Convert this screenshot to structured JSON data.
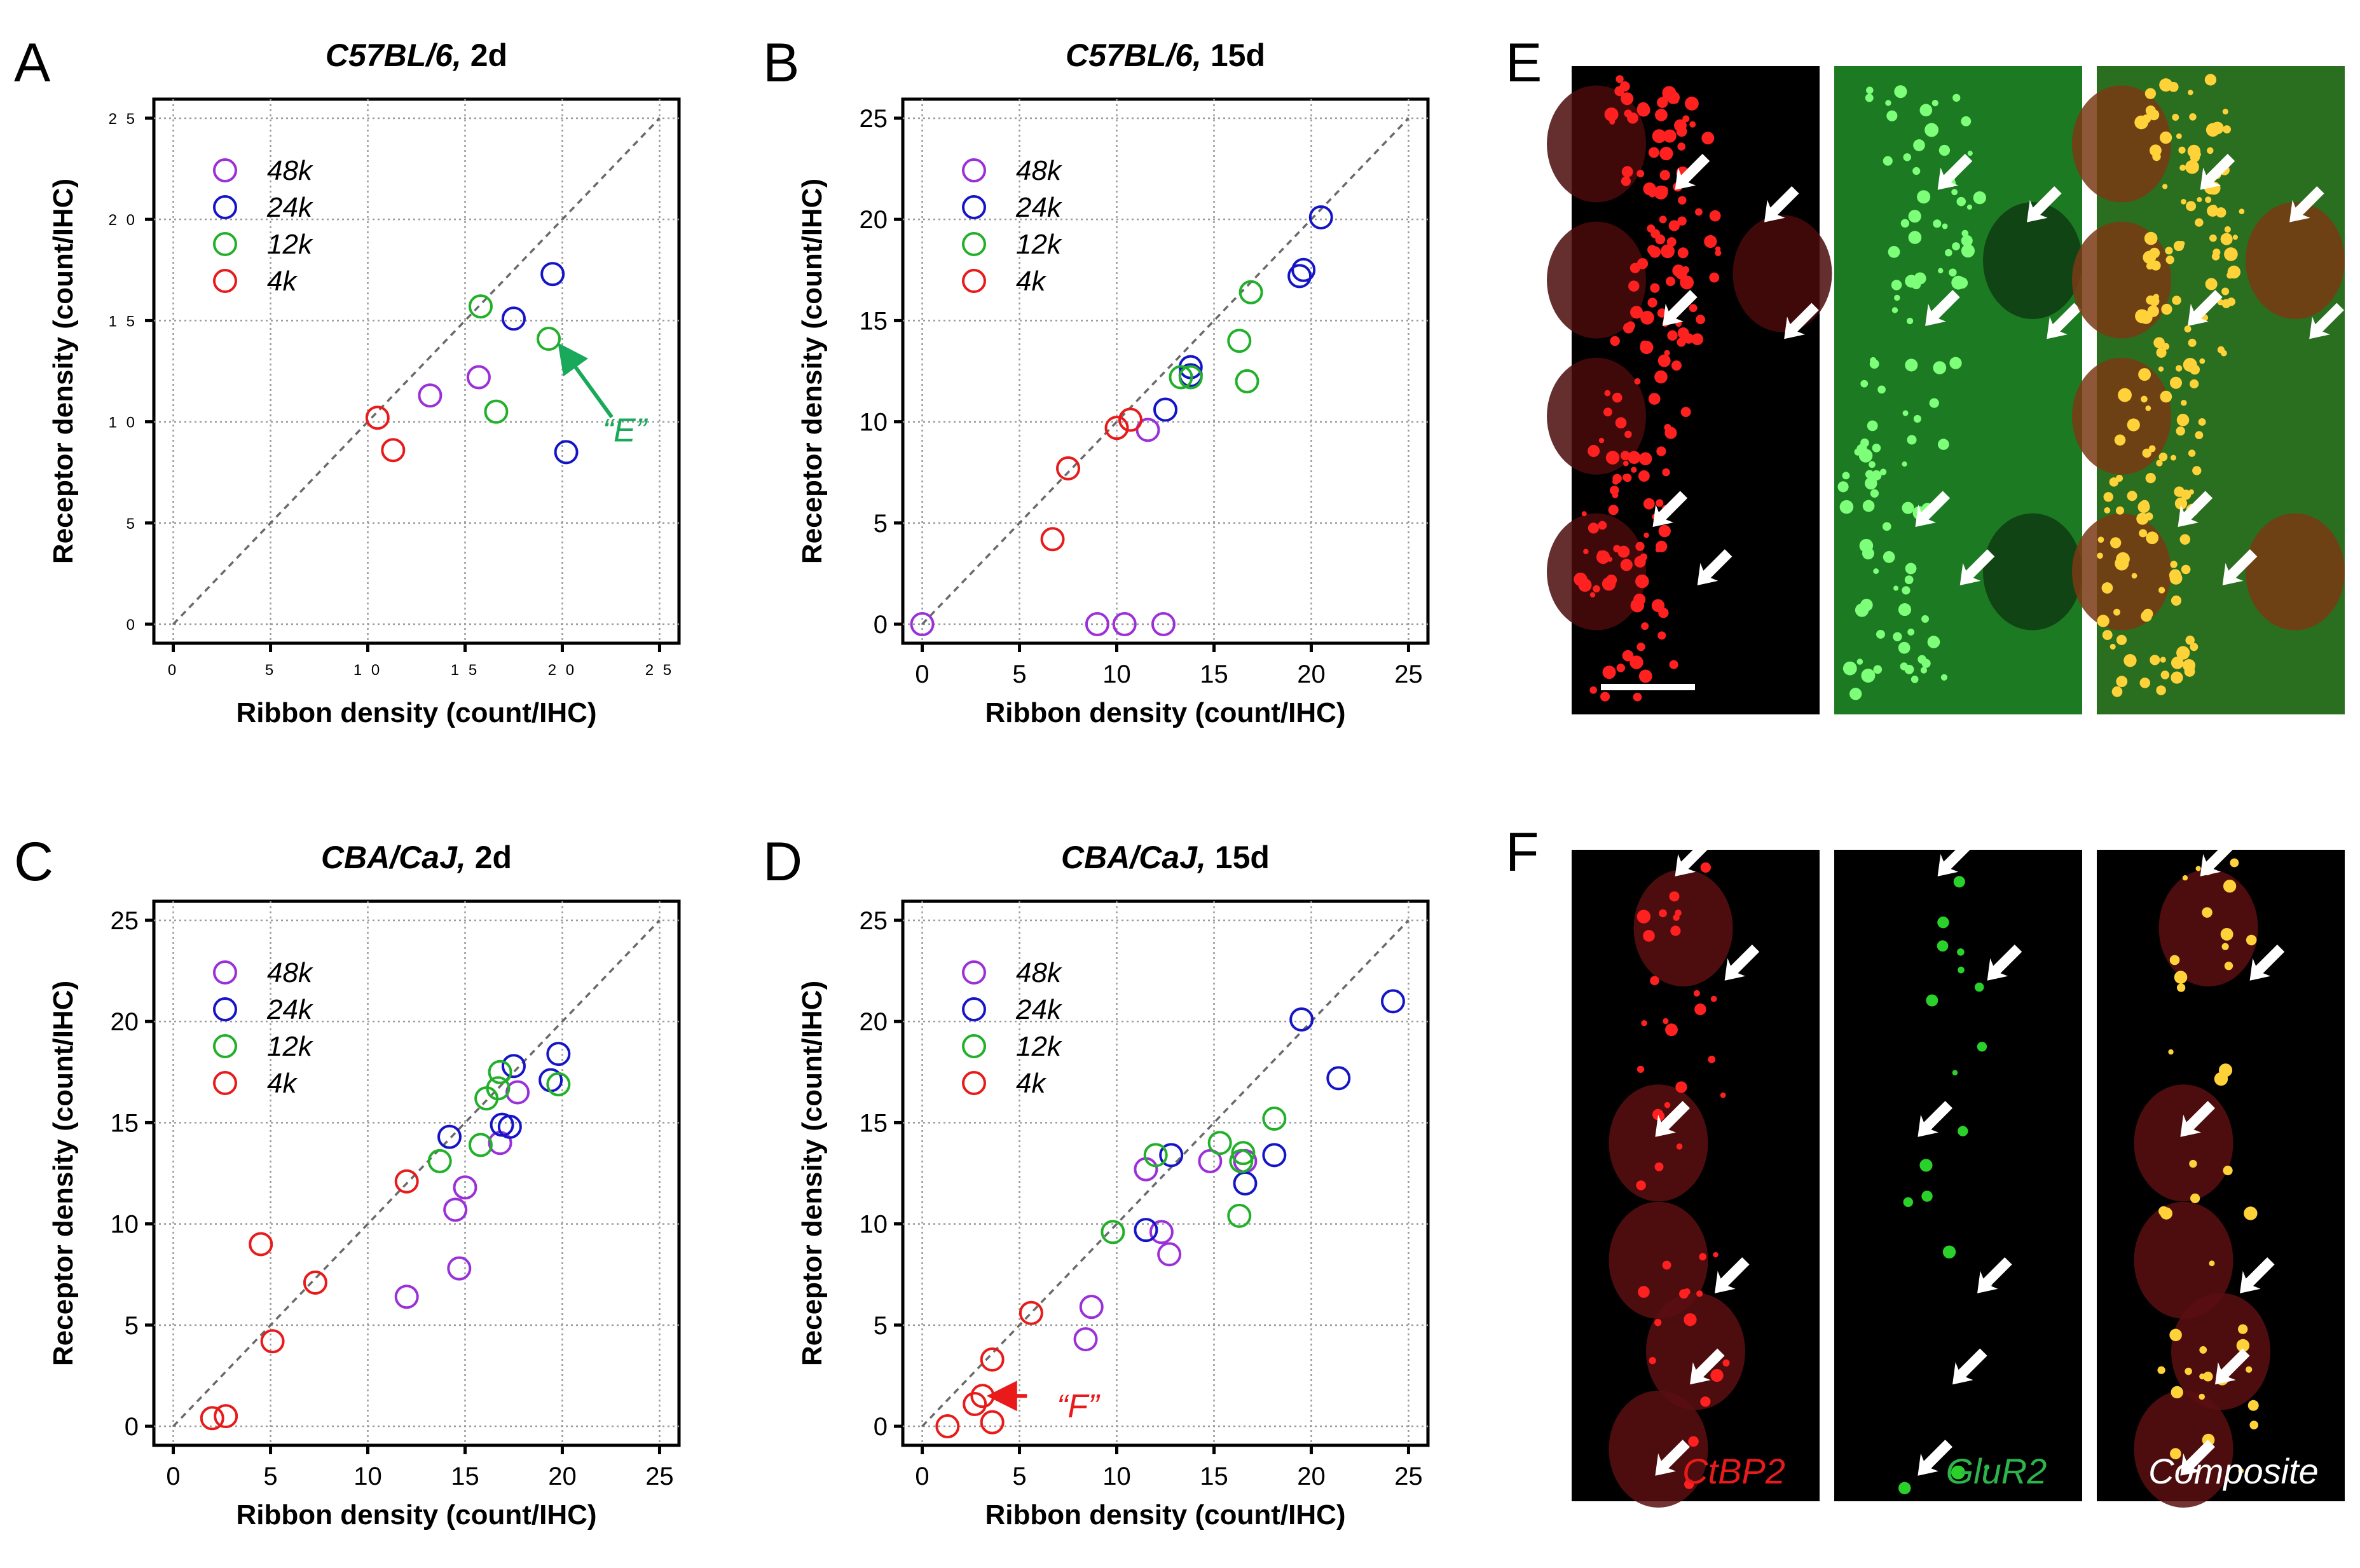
{
  "colors": {
    "48k": "#9b30d9",
    "24k": "#1515c8",
    "12k": "#22b02a",
    "4k": "#e81a1a",
    "annotation_E": "#1aa85a",
    "annotation_F": "#e81a1a",
    "label_ctbp2": "#e81a1a",
    "label_glur2": "#2bb54a",
    "label_composite": "#ffffff"
  },
  "legend_entries": [
    "48k",
    "24k",
    "12k",
    "4k"
  ],
  "chart_data": [
    {
      "panel": "A",
      "type": "scatter",
      "title_italic": "C57BL/6,",
      "title_rest": " 2d",
      "xlabel": "Ribbon density (count/IHC)",
      "ylabel": "Receptor density (count/IHC)",
      "xlim": [
        0,
        25
      ],
      "ylim": [
        0,
        25
      ],
      "xticks": [
        "0",
        "5",
        "1 0",
        "1 5",
        "2 0",
        "2 5"
      ],
      "yticks": [
        "0",
        "5",
        "1 0",
        "1 5",
        "2 0",
        "2 5"
      ],
      "tick_style": "small",
      "grid": true,
      "identity_line": true,
      "legend_position": "top-left",
      "series": [
        {
          "name": "48k",
          "points": [
            [
              13.2,
              11.3
            ],
            [
              15.7,
              12.2
            ]
          ]
        },
        {
          "name": "24k",
          "points": [
            [
              17.5,
              15.1
            ],
            [
              19.5,
              17.3
            ],
            [
              20.2,
              8.5
            ]
          ]
        },
        {
          "name": "12k",
          "points": [
            [
              15.8,
              15.7
            ],
            [
              16.6,
              10.5
            ],
            [
              19.3,
              14.1
            ]
          ]
        },
        {
          "name": "4k",
          "points": [
            [
              10.5,
              10.2
            ],
            [
              11.3,
              8.6
            ]
          ]
        }
      ],
      "annotation": {
        "text": "“E”",
        "color_key": "annotation_E",
        "arrow_to": [
          20.0,
          13.6
        ],
        "text_at": [
          23.2,
          9.6
        ]
      }
    },
    {
      "panel": "B",
      "type": "scatter",
      "title_italic": "C57BL/6,",
      "title_rest": " 15d",
      "xlabel": "Ribbon density (count/IHC)",
      "ylabel": "Receptor density (count/IHC)",
      "xlim": [
        0,
        25
      ],
      "ylim": [
        0,
        25
      ],
      "xticks": [
        "0",
        "5",
        "10",
        "15",
        "20",
        "25"
      ],
      "yticks": [
        "0",
        "5",
        "10",
        "15",
        "20",
        "25"
      ],
      "tick_style": "normal",
      "grid": true,
      "identity_line": true,
      "legend_position": "top-left",
      "series": [
        {
          "name": "48k",
          "points": [
            [
              0.0,
              0.0
            ],
            [
              9.0,
              0.0
            ],
            [
              10.4,
              0.0
            ],
            [
              12.4,
              0.0
            ],
            [
              11.6,
              9.6
            ]
          ]
        },
        {
          "name": "24k",
          "points": [
            [
              12.5,
              10.6
            ],
            [
              13.8,
              12.3
            ],
            [
              13.8,
              12.7
            ],
            [
              19.4,
              17.2
            ],
            [
              19.6,
              17.5
            ],
            [
              20.5,
              20.1
            ]
          ]
        },
        {
          "name": "12k",
          "points": [
            [
              13.3,
              12.2
            ],
            [
              13.8,
              12.2
            ],
            [
              16.3,
              14.0
            ],
            [
              16.7,
              12.0
            ],
            [
              16.9,
              16.4
            ]
          ]
        },
        {
          "name": "4k",
          "points": [
            [
              6.7,
              4.2
            ],
            [
              7.5,
              7.7
            ],
            [
              10.0,
              9.7
            ],
            [
              10.7,
              10.1
            ]
          ]
        }
      ]
    },
    {
      "panel": "C",
      "type": "scatter",
      "title_italic": "CBA/CaJ,",
      "title_rest": " 2d",
      "xlabel": "Ribbon density (count/IHC)",
      "ylabel": "Receptor density (count/IHC)",
      "xlim": [
        0,
        25
      ],
      "ylim": [
        0,
        25
      ],
      "xticks": [
        "0",
        "5",
        "10",
        "15",
        "20",
        "25"
      ],
      "yticks": [
        "0",
        "5",
        "10",
        "15",
        "20",
        "25"
      ],
      "tick_style": "normal",
      "grid": true,
      "identity_line": true,
      "legend_position": "top-left",
      "series": [
        {
          "name": "48k",
          "points": [
            [
              12.0,
              6.4
            ],
            [
              14.5,
              10.7
            ],
            [
              14.7,
              7.8
            ],
            [
              15.0,
              11.8
            ],
            [
              16.8,
              14.0
            ],
            [
              17.7,
              16.5
            ]
          ]
        },
        {
          "name": "24k",
          "points": [
            [
              14.2,
              14.3
            ],
            [
              16.9,
              14.9
            ],
            [
              17.3,
              14.8
            ],
            [
              17.5,
              17.8
            ],
            [
              19.4,
              17.1
            ],
            [
              19.8,
              18.4
            ]
          ]
        },
        {
          "name": "12k",
          "points": [
            [
              13.7,
              13.1
            ],
            [
              15.8,
              13.9
            ],
            [
              16.1,
              16.2
            ],
            [
              16.7,
              16.7
            ],
            [
              16.8,
              17.5
            ],
            [
              19.8,
              16.9
            ]
          ]
        },
        {
          "name": "4k",
          "points": [
            [
              2.0,
              0.4
            ],
            [
              2.7,
              0.5
            ],
            [
              4.5,
              9.0
            ],
            [
              5.1,
              4.2
            ],
            [
              7.3,
              7.1
            ],
            [
              12.0,
              12.1
            ]
          ]
        }
      ]
    },
    {
      "panel": "D",
      "type": "scatter",
      "title_italic": "CBA/CaJ,",
      "title_rest": " 15d",
      "xlabel": "Ribbon density (count/IHC)",
      "ylabel": "Receptor density (count/IHC)",
      "xlim": [
        0,
        25
      ],
      "ylim": [
        0,
        25
      ],
      "xticks": [
        "0",
        "5",
        "10",
        "15",
        "20",
        "25"
      ],
      "yticks": [
        "0",
        "5",
        "10",
        "15",
        "20",
        "25"
      ],
      "tick_style": "normal",
      "grid": true,
      "identity_line": true,
      "legend_position": "top-left",
      "series": [
        {
          "name": "48k",
          "points": [
            [
              8.4,
              4.3
            ],
            [
              8.7,
              5.9
            ],
            [
              11.5,
              12.7
            ],
            [
              12.3,
              9.6
            ],
            [
              12.7,
              8.5
            ],
            [
              14.8,
              13.1
            ],
            [
              16.6,
              13.1
            ]
          ]
        },
        {
          "name": "24k",
          "points": [
            [
              11.5,
              9.7
            ],
            [
              12.8,
              13.4
            ],
            [
              16.6,
              12.0
            ],
            [
              18.1,
              13.4
            ],
            [
              19.5,
              20.1
            ],
            [
              21.4,
              17.2
            ],
            [
              24.2,
              21.0
            ]
          ]
        },
        {
          "name": "12k",
          "points": [
            [
              9.8,
              9.6
            ],
            [
              12.0,
              13.4
            ],
            [
              15.3,
              14.0
            ],
            [
              16.3,
              10.4
            ],
            [
              16.4,
              13.1
            ],
            [
              16.5,
              13.5
            ],
            [
              18.1,
              15.2
            ]
          ]
        },
        {
          "name": "4k",
          "points": [
            [
              1.3,
              0.0
            ],
            [
              2.7,
              1.1
            ],
            [
              3.1,
              1.5
            ],
            [
              3.6,
              0.2
            ],
            [
              3.6,
              3.3
            ],
            [
              5.6,
              5.6
            ]
          ]
        }
      ],
      "annotation": {
        "text": "“F”",
        "color_key": "annotation_F",
        "arrow_to": [
          3.7,
          1.5
        ],
        "text_at": [
          8.0,
          1.0
        ]
      }
    }
  ],
  "images": {
    "E": {
      "letter": "E",
      "channels": [
        {
          "kind": "red",
          "arrows": [
            [
              0.42,
              0.17
            ],
            [
              0.78,
              0.22
            ],
            [
              0.37,
              0.38
            ],
            [
              0.86,
              0.4
            ],
            [
              0.33,
              0.69
            ],
            [
              0.51,
              0.78
            ]
          ],
          "blobs": [
            [
              0.1,
              0.12
            ],
            [
              0.1,
              0.33
            ],
            [
              0.1,
              0.54
            ],
            [
              0.1,
              0.78
            ],
            [
              0.85,
              0.32
            ]
          ]
        },
        {
          "kind": "green",
          "arrows": [
            [
              0.42,
              0.17
            ],
            [
              0.78,
              0.22
            ],
            [
              0.37,
              0.38
            ],
            [
              0.86,
              0.4
            ],
            [
              0.33,
              0.69
            ],
            [
              0.51,
              0.78
            ]
          ],
          "blobs": [
            [
              0.8,
              0.3
            ],
            [
              0.8,
              0.78
            ]
          ]
        },
        {
          "kind": "merge",
          "arrows": [
            [
              0.42,
              0.17
            ],
            [
              0.78,
              0.22
            ],
            [
              0.37,
              0.38
            ],
            [
              0.86,
              0.4
            ],
            [
              0.33,
              0.69
            ],
            [
              0.51,
              0.78
            ]
          ],
          "blobs": [
            [
              0.1,
              0.12
            ],
            [
              0.1,
              0.33
            ],
            [
              0.1,
              0.54
            ],
            [
              0.1,
              0.78
            ],
            [
              0.8,
              0.3
            ],
            [
              0.8,
              0.78
            ]
          ]
        }
      ],
      "scale_bar": true
    },
    "F": {
      "letter": "F",
      "channels": [
        {
          "kind": "red",
          "arrows": [
            [
              0.42,
              0.02
            ],
            [
              0.62,
              0.18
            ],
            [
              0.34,
              0.42
            ],
            [
              0.58,
              0.66
            ],
            [
              0.48,
              0.8
            ],
            [
              0.34,
              0.94
            ]
          ],
          "blobs": [
            [
              0.45,
              0.12
            ],
            [
              0.35,
              0.45
            ],
            [
              0.35,
              0.63
            ],
            [
              0.5,
              0.77
            ],
            [
              0.35,
              0.92
            ]
          ],
          "label": "CtBP2",
          "label_color_key": "label_ctbp2"
        },
        {
          "kind": "green",
          "arrows": [
            [
              0.42,
              0.02
            ],
            [
              0.62,
              0.18
            ],
            [
              0.34,
              0.42
            ],
            [
              0.58,
              0.66
            ],
            [
              0.48,
              0.8
            ],
            [
              0.34,
              0.94
            ]
          ],
          "blobs": [],
          "label": "GluR2",
          "label_color_key": "label_glur2"
        },
        {
          "kind": "merge",
          "arrows": [
            [
              0.42,
              0.02
            ],
            [
              0.62,
              0.18
            ],
            [
              0.34,
              0.42
            ],
            [
              0.58,
              0.66
            ],
            [
              0.48,
              0.8
            ],
            [
              0.34,
              0.94
            ]
          ],
          "blobs": [
            [
              0.45,
              0.12
            ],
            [
              0.35,
              0.45
            ],
            [
              0.35,
              0.63
            ],
            [
              0.5,
              0.77
            ],
            [
              0.35,
              0.92
            ]
          ],
          "label": "Composite",
          "label_color_key": "label_composite"
        }
      ]
    }
  }
}
